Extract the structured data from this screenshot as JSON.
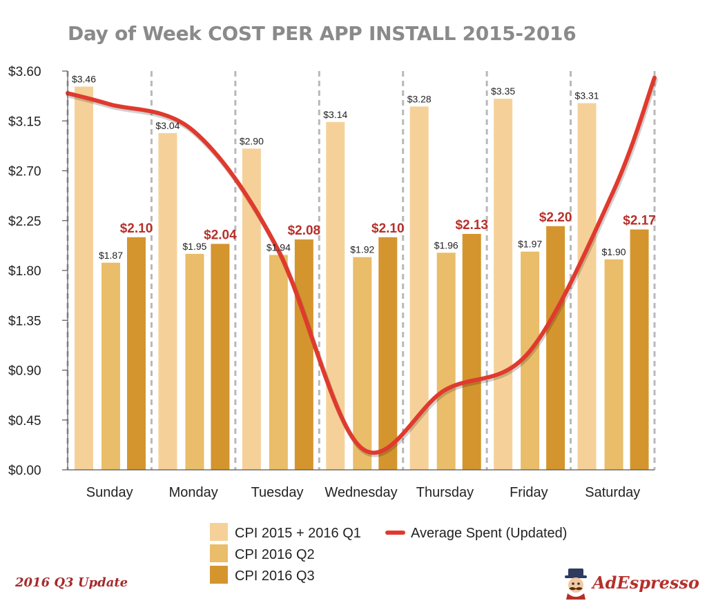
{
  "chart_data": {
    "type": "bar",
    "title": "Day of Week COST PER APP INSTALL 2015-2016",
    "categories": [
      "Sunday",
      "Monday",
      "Tuesday",
      "Wednesday",
      "Thursday",
      "Friday",
      "Saturday"
    ],
    "series": [
      {
        "name": "CPI 2015 + 2016 Q1",
        "color": "#f5d199",
        "values": [
          3.46,
          3.04,
          2.9,
          3.14,
          3.28,
          3.35,
          3.31
        ],
        "labels": [
          "$3.46",
          "$3.04",
          "$2.90",
          "$3.14",
          "$3.28",
          "$3.35",
          "$3.31"
        ]
      },
      {
        "name": "CPI 2016 Q2",
        "color": "#e9bd69",
        "values": [
          1.87,
          1.95,
          1.94,
          1.92,
          1.96,
          1.97,
          1.9
        ],
        "labels": [
          "$1.87",
          "$1.95",
          "$1.94",
          "$1.92",
          "$1.96",
          "$1.97",
          "$1.90"
        ]
      },
      {
        "name": "CPI 2016 Q3",
        "color": "#d4952f",
        "values": [
          2.1,
          2.04,
          2.08,
          2.1,
          2.13,
          2.2,
          2.17
        ],
        "labels": [
          "$2.10",
          "$2.04",
          "$2.08",
          "$2.10",
          "$2.13",
          "$2.20",
          "$2.17"
        ]
      }
    ],
    "line_series": {
      "name": "Average Spent (Updated)",
      "type": "line",
      "color": "#e03a2e",
      "x": [
        "Sunday start",
        "Sunday",
        "Monday",
        "Tuesday",
        "Wednesday",
        "Thursday",
        "Friday",
        "Saturday",
        "Saturday end"
      ],
      "values": [
        3.4,
        3.3,
        3.06,
        2.0,
        0.2,
        0.72,
        1.06,
        2.5,
        3.54
      ]
    },
    "y_ticks": [
      "$0.00",
      "$0.45",
      "$0.90",
      "$1.35",
      "$1.80",
      "$2.25",
      "$2.70",
      "$3.15",
      "$3.60"
    ],
    "ylim": [
      0,
      3.6
    ],
    "xlabel": "",
    "ylabel": "",
    "grid": "dashed vertical separators between days",
    "legend_position": "bottom"
  },
  "footer": {
    "note": "2016 Q3 Update",
    "brand": "AdEspresso",
    "brand_icon": "mascot-logo"
  }
}
